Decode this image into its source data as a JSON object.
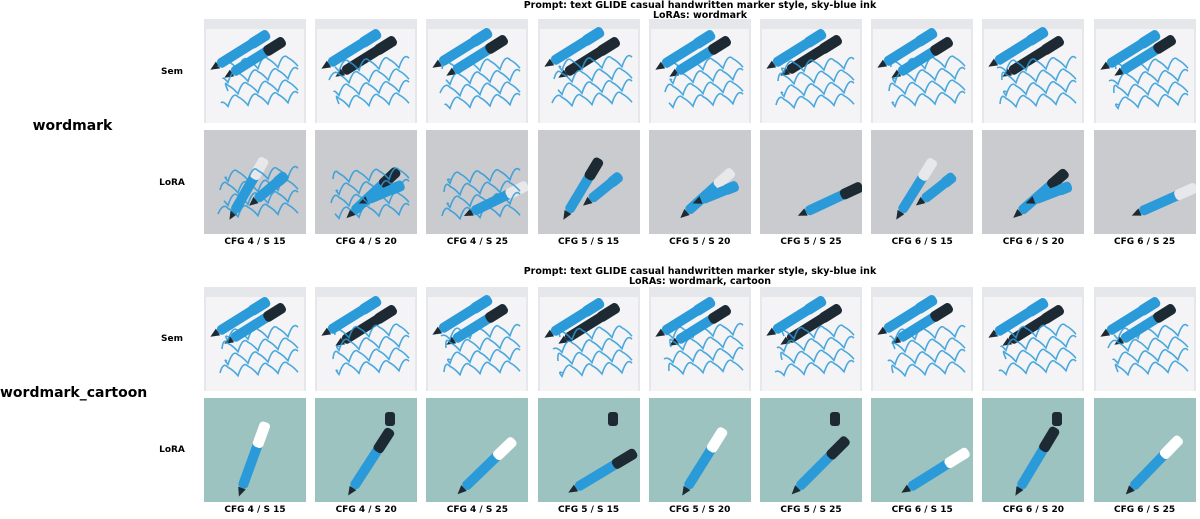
{
  "blocks": [
    {
      "prompt": "Prompt: text GLIDE casual handwritten marker style, sky-blue ink",
      "loras": "LoRAs: wordmark",
      "group_label": "wordmark",
      "rows": [
        {
          "label": "Sem",
          "style": "paper"
        },
        {
          "label": "LoRA",
          "style": "gray"
        }
      ]
    },
    {
      "prompt": "Prompt: text GLIDE casual handwritten marker style, sky-blue ink",
      "loras": "LoRAs: wordmark, cartoon",
      "group_label": "wordmark_cartoon",
      "rows": [
        {
          "label": "Sem",
          "style": "paper"
        },
        {
          "label": "LoRA",
          "style": "teal"
        }
      ]
    }
  ],
  "columns": [
    "CFG 4 / S 15",
    "CFG 4 / S 20",
    "CFG 4 / S 25",
    "CFG 5 / S 15",
    "CFG 5 / S 20",
    "CFG 5 / S 25",
    "CFG 6 / S 15",
    "CFG 6 / S 20",
    "CFG 6 / S 25"
  ],
  "colors": {
    "marker_blue": "#2b9ad8",
    "marker_dark": "#1e2a33",
    "paper_bg": "#e6e7ea",
    "gray_bg": "#c9cbce",
    "teal_bg": "#9cc3c0"
  }
}
